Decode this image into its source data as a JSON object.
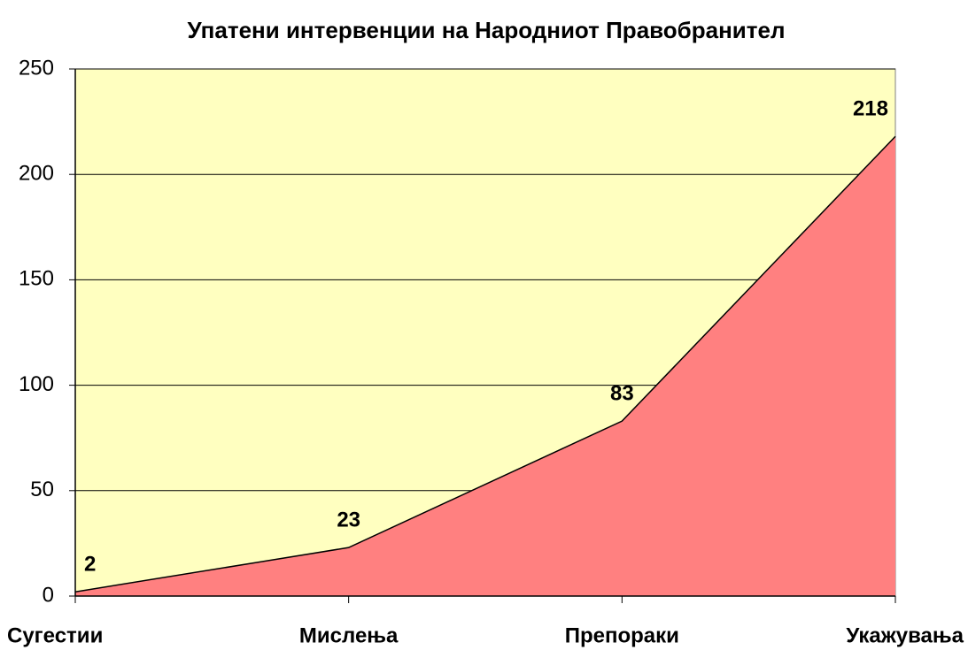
{
  "chart_data": {
    "type": "area",
    "title": "Упатени интервенции на Народниот Правобранител",
    "categories": [
      "Сугестии",
      "Мислења",
      "Препораки",
      "Укажувања"
    ],
    "values": [
      2,
      23,
      83,
      218
    ],
    "color": "#ff8080",
    "background": "#ffffc0",
    "ylim": [
      0,
      250
    ],
    "yticks": [
      0,
      50,
      100,
      150,
      200,
      250
    ],
    "grid": true
  }
}
